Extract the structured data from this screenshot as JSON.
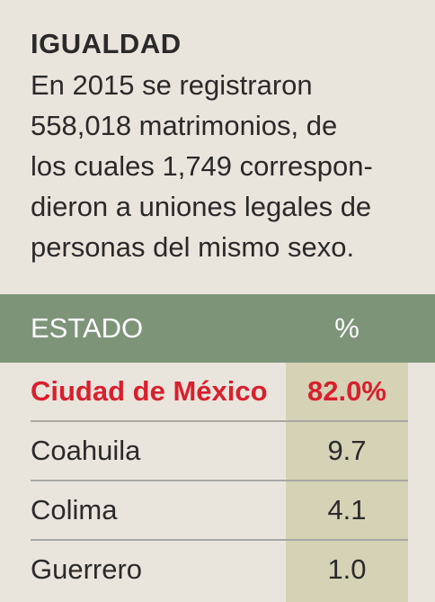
{
  "intro": {
    "title": "IGUALDAD",
    "lines": [
      "En 2015 se registraron",
      "558,018 matrimonios, de",
      "los cuales 1,749 correspon-",
      "dieron a uniones legales de",
      "personas del mismo sexo."
    ]
  },
  "colors": {
    "background": "#eae5dc",
    "header_band": "#7d9479",
    "value_column": "#d6d2b5",
    "highlight": "#d8202e"
  },
  "chart_data": {
    "type": "table",
    "columns": [
      "ESTADO",
      "%"
    ],
    "rows": [
      {
        "estado": "Ciudad de México",
        "pct": "82.0%",
        "value": 82.0,
        "highlight": true
      },
      {
        "estado": "Coahuila",
        "pct": "9.7",
        "value": 9.7,
        "highlight": false
      },
      {
        "estado": "Colima",
        "pct": "4.1",
        "value": 4.1,
        "highlight": false
      },
      {
        "estado": "Guerrero",
        "pct": "1.0",
        "value": 1.0,
        "highlight": false
      }
    ]
  }
}
